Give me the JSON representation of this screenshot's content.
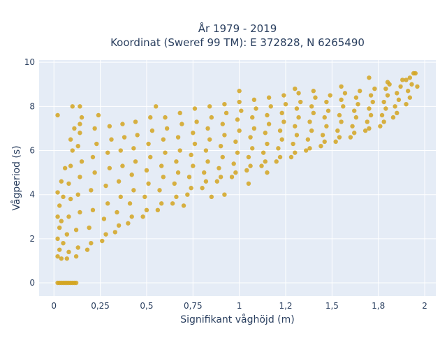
{
  "chart_data": {
    "type": "scatter",
    "title_lines": [
      "År 1979 - 2019",
      "Koordinat (Sweref 99 TM): E 372828, N 6265490"
    ],
    "xlabel": "Signifikant våghöjd (m)",
    "ylabel": "Vågperiod (s)",
    "xlim": [
      -0.08,
      2.06
    ],
    "ylim": [
      -0.6,
      10.1
    ],
    "x_ticks": [
      {
        "value": 0,
        "label": "0"
      },
      {
        "value": 0.25,
        "label": "0,25"
      },
      {
        "value": 0.5,
        "label": "0,5"
      },
      {
        "value": 0.75,
        "label": "0,75"
      },
      {
        "value": 1,
        "label": "1"
      },
      {
        "value": 1.25,
        "label": "1,2"
      },
      {
        "value": 1.5,
        "label": "1,5"
      },
      {
        "value": 1.75,
        "label": "1,8"
      },
      {
        "value": 2,
        "label": "2"
      }
    ],
    "y_ticks": [
      {
        "value": 0,
        "label": "0"
      },
      {
        "value": 2,
        "label": "2"
      },
      {
        "value": 4,
        "label": "4"
      },
      {
        "value": 6,
        "label": "6"
      },
      {
        "value": 8,
        "label": "8"
      },
      {
        "value": 10,
        "label": "10"
      }
    ],
    "grid": true,
    "marker_color": "#d4a520",
    "background_color": "#e5ecf6",
    "series": [
      {
        "points": [
          [
            0.02,
            0.0
          ],
          [
            0.03,
            0.0
          ],
          [
            0.04,
            0.0
          ],
          [
            0.05,
            0.0
          ],
          [
            0.06,
            0.0
          ],
          [
            0.07,
            0.0
          ],
          [
            0.08,
            0.0
          ],
          [
            0.09,
            0.0
          ],
          [
            0.1,
            0.0
          ],
          [
            0.11,
            0.0
          ],
          [
            0.12,
            0.0
          ],
          [
            0.02,
            1.2
          ],
          [
            0.03,
            1.5
          ],
          [
            0.02,
            2.0
          ],
          [
            0.03,
            2.5
          ],
          [
            0.02,
            3.0
          ],
          [
            0.03,
            3.5
          ],
          [
            0.02,
            4.1
          ],
          [
            0.04,
            1.1
          ],
          [
            0.05,
            1.8
          ],
          [
            0.04,
            2.8
          ],
          [
            0.05,
            3.9
          ],
          [
            0.04,
            4.6
          ],
          [
            0.06,
            5.2
          ],
          [
            0.07,
            1.1
          ],
          [
            0.08,
            1.4
          ],
          [
            0.07,
            2.2
          ],
          [
            0.08,
            3.0
          ],
          [
            0.09,
            3.8
          ],
          [
            0.08,
            4.5
          ],
          [
            0.09,
            5.3
          ],
          [
            0.1,
            6.0
          ],
          [
            0.09,
            6.5
          ],
          [
            0.11,
            7.0
          ],
          [
            0.12,
            1.2
          ],
          [
            0.13,
            1.6
          ],
          [
            0.12,
            2.4
          ],
          [
            0.14,
            3.2
          ],
          [
            0.13,
            4.0
          ],
          [
            0.14,
            4.8
          ],
          [
            0.15,
            5.5
          ],
          [
            0.13,
            6.2
          ],
          [
            0.14,
            6.8
          ],
          [
            0.15,
            7.5
          ],
          [
            0.14,
            8.0
          ],
          [
            0.18,
            1.5
          ],
          [
            0.2,
            1.8
          ],
          [
            0.19,
            2.5
          ],
          [
            0.21,
            3.3
          ],
          [
            0.2,
            4.2
          ],
          [
            0.22,
            5.0
          ],
          [
            0.21,
            5.7
          ],
          [
            0.23,
            6.3
          ],
          [
            0.22,
            7.0
          ],
          [
            0.24,
            7.6
          ],
          [
            0.26,
            1.9
          ],
          [
            0.28,
            2.2
          ],
          [
            0.27,
            2.9
          ],
          [
            0.29,
            3.6
          ],
          [
            0.28,
            4.4
          ],
          [
            0.3,
            5.2
          ],
          [
            0.29,
            5.9
          ],
          [
            0.31,
            6.5
          ],
          [
            0.3,
            7.1
          ],
          [
            0.33,
            2.3
          ],
          [
            0.35,
            2.6
          ],
          [
            0.34,
            3.2
          ],
          [
            0.36,
            3.9
          ],
          [
            0.35,
            4.6
          ],
          [
            0.37,
            5.3
          ],
          [
            0.36,
            6.0
          ],
          [
            0.38,
            6.6
          ],
          [
            0.37,
            7.2
          ],
          [
            0.4,
            2.7
          ],
          [
            0.42,
            3.0
          ],
          [
            0.41,
            3.6
          ],
          [
            0.43,
            4.2
          ],
          [
            0.42,
            4.9
          ],
          [
            0.44,
            5.5
          ],
          [
            0.43,
            6.1
          ],
          [
            0.45,
            6.7
          ],
          [
            0.44,
            7.3
          ],
          [
            0.48,
            3.0
          ],
          [
            0.5,
            3.3
          ],
          [
            0.49,
            3.9
          ],
          [
            0.51,
            4.5
          ],
          [
            0.5,
            5.1
          ],
          [
            0.52,
            5.7
          ],
          [
            0.51,
            6.3
          ],
          [
            0.53,
            6.9
          ],
          [
            0.52,
            7.5
          ],
          [
            0.56,
            3.3
          ],
          [
            0.58,
            3.6
          ],
          [
            0.57,
            4.2
          ],
          [
            0.59,
            4.8
          ],
          [
            0.58,
            5.3
          ],
          [
            0.6,
            5.9
          ],
          [
            0.59,
            6.5
          ],
          [
            0.61,
            7.0
          ],
          [
            0.6,
            7.5
          ],
          [
            0.64,
            3.6
          ],
          [
            0.66,
            3.9
          ],
          [
            0.65,
            4.5
          ],
          [
            0.67,
            5.0
          ],
          [
            0.66,
            5.5
          ],
          [
            0.68,
            6.0
          ],
          [
            0.67,
            6.6
          ],
          [
            0.69,
            7.2
          ],
          [
            0.68,
            7.7
          ],
          [
            0.72,
            4.0
          ],
          [
            0.74,
            4.3
          ],
          [
            0.73,
            4.8
          ],
          [
            0.75,
            5.3
          ],
          [
            0.74,
            5.8
          ],
          [
            0.76,
            6.3
          ],
          [
            0.75,
            6.8
          ],
          [
            0.77,
            7.3
          ],
          [
            0.76,
            7.9
          ],
          [
            0.8,
            4.3
          ],
          [
            0.82,
            4.6
          ],
          [
            0.81,
            5.0
          ],
          [
            0.83,
            5.5
          ],
          [
            0.82,
            6.0
          ],
          [
            0.84,
            6.5
          ],
          [
            0.83,
            7.0
          ],
          [
            0.85,
            7.5
          ],
          [
            0.84,
            8.0
          ],
          [
            0.88,
            4.6
          ],
          [
            0.9,
            4.8
          ],
          [
            0.89,
            5.2
          ],
          [
            0.91,
            5.7
          ],
          [
            0.9,
            6.2
          ],
          [
            0.92,
            6.7
          ],
          [
            0.91,
            7.2
          ],
          [
            0.93,
            7.7
          ],
          [
            0.92,
            8.1
          ],
          [
            0.96,
            4.8
          ],
          [
            0.98,
            5.0
          ],
          [
            0.97,
            5.4
          ],
          [
            0.99,
            5.9
          ],
          [
            0.98,
            6.4
          ],
          [
            1.0,
            6.9
          ],
          [
            0.99,
            7.4
          ],
          [
            1.01,
            7.8
          ],
          [
            1.0,
            8.2
          ],
          [
            1.04,
            5.1
          ],
          [
            1.06,
            5.3
          ],
          [
            1.05,
            5.7
          ],
          [
            1.07,
            6.1
          ],
          [
            1.06,
            6.6
          ],
          [
            1.08,
            7.0
          ],
          [
            1.07,
            7.5
          ],
          [
            1.09,
            7.9
          ],
          [
            1.08,
            8.3
          ],
          [
            1.12,
            5.3
          ],
          [
            1.14,
            5.5
          ],
          [
            1.13,
            5.9
          ],
          [
            1.15,
            6.3
          ],
          [
            1.14,
            6.8
          ],
          [
            1.16,
            7.2
          ],
          [
            1.15,
            7.6
          ],
          [
            1.17,
            8.0
          ],
          [
            1.16,
            8.4
          ],
          [
            1.2,
            5.5
          ],
          [
            1.22,
            5.7
          ],
          [
            1.21,
            6.1
          ],
          [
            1.23,
            6.5
          ],
          [
            1.22,
            6.9
          ],
          [
            1.24,
            7.3
          ],
          [
            1.23,
            7.7
          ],
          [
            1.25,
            8.1
          ],
          [
            1.24,
            8.5
          ],
          [
            1.28,
            5.7
          ],
          [
            1.3,
            5.9
          ],
          [
            1.29,
            6.3
          ],
          [
            1.31,
            6.7
          ],
          [
            1.3,
            7.1
          ],
          [
            1.32,
            7.5
          ],
          [
            1.31,
            7.9
          ],
          [
            1.33,
            8.2
          ],
          [
            1.32,
            8.6
          ],
          [
            1.36,
            6.0
          ],
          [
            1.38,
            6.1
          ],
          [
            1.37,
            6.5
          ],
          [
            1.39,
            6.9
          ],
          [
            1.38,
            7.3
          ],
          [
            1.4,
            7.7
          ],
          [
            1.39,
            8.0
          ],
          [
            1.41,
            8.4
          ],
          [
            1.4,
            8.7
          ],
          [
            1.44,
            6.2
          ],
          [
            1.46,
            6.4
          ],
          [
            1.45,
            6.7
          ],
          [
            1.47,
            7.1
          ],
          [
            1.46,
            7.5
          ],
          [
            1.48,
            7.8
          ],
          [
            1.47,
            8.2
          ],
          [
            1.49,
            8.5
          ],
          [
            1.52,
            6.4
          ],
          [
            1.54,
            6.6
          ],
          [
            1.53,
            6.9
          ],
          [
            1.55,
            7.3
          ],
          [
            1.54,
            7.6
          ],
          [
            1.56,
            8.0
          ],
          [
            1.55,
            8.3
          ],
          [
            1.57,
            8.6
          ],
          [
            1.6,
            6.6
          ],
          [
            1.62,
            6.8
          ],
          [
            1.61,
            7.1
          ],
          [
            1.63,
            7.5
          ],
          [
            1.62,
            7.8
          ],
          [
            1.64,
            8.1
          ],
          [
            1.63,
            8.4
          ],
          [
            1.65,
            8.7
          ],
          [
            1.68,
            6.9
          ],
          [
            1.7,
            7.0
          ],
          [
            1.69,
            7.3
          ],
          [
            1.71,
            7.6
          ],
          [
            1.7,
            7.9
          ],
          [
            1.72,
            8.2
          ],
          [
            1.71,
            8.5
          ],
          [
            1.73,
            8.8
          ],
          [
            1.76,
            7.1
          ],
          [
            1.78,
            7.3
          ],
          [
            1.77,
            7.6
          ],
          [
            1.79,
            7.9
          ],
          [
            1.78,
            8.2
          ],
          [
            1.8,
            8.5
          ],
          [
            1.79,
            8.8
          ],
          [
            1.81,
            9.0
          ],
          [
            1.83,
            7.5
          ],
          [
            1.85,
            7.7
          ],
          [
            1.84,
            8.0
          ],
          [
            1.86,
            8.3
          ],
          [
            1.85,
            8.6
          ],
          [
            1.87,
            8.9
          ],
          [
            1.88,
            9.2
          ],
          [
            1.9,
            8.1
          ],
          [
            1.92,
            8.4
          ],
          [
            1.91,
            8.7
          ],
          [
            1.93,
            9.0
          ],
          [
            1.92,
            9.3
          ],
          [
            1.95,
            9.5
          ],
          [
            1.96,
            8.9
          ],
          [
            1.94,
            9.5
          ],
          [
            1.9,
            9.2
          ],
          [
            0.02,
            7.6
          ],
          [
            0.1,
            8.0
          ],
          [
            0.14,
            7.2
          ],
          [
            0.55,
            8.0
          ],
          [
            1.0,
            8.7
          ],
          [
            1.3,
            8.8
          ],
          [
            1.55,
            8.9
          ],
          [
            1.7,
            9.3
          ],
          [
            1.8,
            9.1
          ],
          [
            0.92,
            4.0
          ],
          [
            1.05,
            4.5
          ],
          [
            1.15,
            5.0
          ],
          [
            0.7,
            3.5
          ],
          [
            0.85,
            3.9
          ]
        ]
      }
    ]
  }
}
